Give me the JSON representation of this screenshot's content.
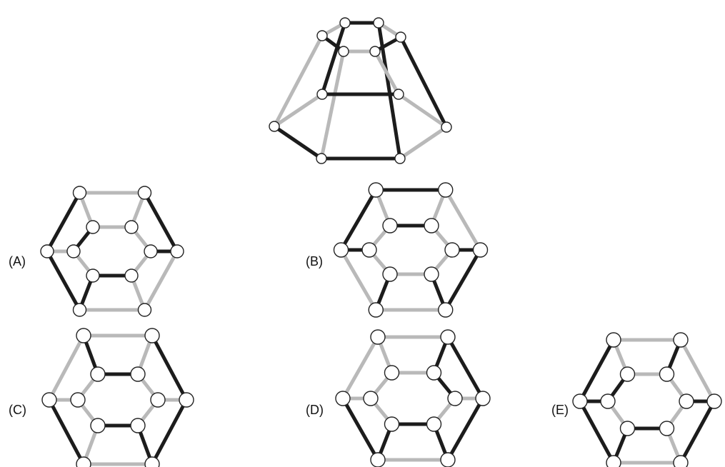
{
  "colors": {
    "dark": "#1c1c1c",
    "light": "#b9b9b9",
    "node_fill": "#ffffff",
    "node_stroke": "#222222"
  },
  "options": {
    "A": {
      "label": "(A)"
    },
    "B": {
      "label": "(B)"
    },
    "C": {
      "label": "(C)"
    },
    "D": {
      "label": "(D)"
    },
    "E": {
      "label": "(E)"
    }
  }
}
